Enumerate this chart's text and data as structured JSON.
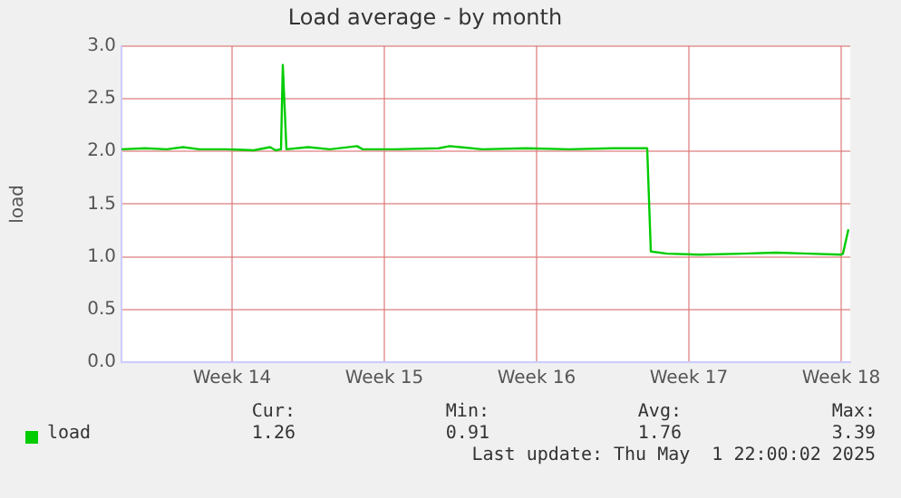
{
  "chart_data": {
    "type": "line",
    "title": "Load average - by month",
    "ylabel": "load",
    "x": [
      "2025-03-29T10:00",
      "2025-03-30T12:00",
      "2025-03-31T12:00",
      "2025-04-01T06:00",
      "2025-04-02T00:00",
      "2025-04-03T06:00",
      "2025-04-04T12:00",
      "2025-04-05T06:00",
      "2025-04-05T12:00",
      "2025-04-05T18:00",
      "2025-04-05T20:00",
      "2025-04-06T00:00",
      "2025-04-07T00:00",
      "2025-04-08T00:00",
      "2025-04-09T06:00",
      "2025-04-09T12:00",
      "2025-04-11T00:00",
      "2025-04-13T00:00",
      "2025-04-13T12:00",
      "2025-04-15T00:00",
      "2025-04-17T00:00",
      "2025-04-19T00:00",
      "2025-04-21T00:00",
      "2025-04-22T14:00",
      "2025-04-22T18:00",
      "2025-04-23T12:00",
      "2025-04-25T00:00",
      "2025-04-27T00:00",
      "2025-04-28T12:00",
      "2025-04-30T00:00",
      "2025-05-01T12:00",
      "2025-05-01T14:00",
      "2025-05-01T20:00"
    ],
    "series": [
      {
        "name": "load",
        "color": "#00cc00",
        "values": [
          2.02,
          2.03,
          2.02,
          2.04,
          2.02,
          2.02,
          2.01,
          2.04,
          2.01,
          2.02,
          2.82,
          2.02,
          2.04,
          2.02,
          2.05,
          2.02,
          2.02,
          2.03,
          2.05,
          2.02,
          2.03,
          2.02,
          2.03,
          2.03,
          1.05,
          1.03,
          1.02,
          1.03,
          1.04,
          1.03,
          1.02,
          1.03,
          1.26
        ]
      }
    ],
    "xlim": [
      "2025-03-29T10:00",
      "2025-05-01T22:00"
    ],
    "xticks": [
      {
        "value": "2025-04-03T12:00",
        "label": "Week 14"
      },
      {
        "value": "2025-04-10T12:00",
        "label": "Week 15"
      },
      {
        "value": "2025-04-17T12:00",
        "label": "Week 16"
      },
      {
        "value": "2025-04-24T12:00",
        "label": "Week 17"
      },
      {
        "value": "2025-05-01T12:00",
        "label": "Week 18"
      }
    ],
    "ylim": [
      0,
      3
    ],
    "yticks": [
      {
        "value": 0,
        "label": "0.0"
      },
      {
        "value": 0.5,
        "label": "0.5"
      },
      {
        "value": 1,
        "label": "1.0"
      },
      {
        "value": 1.5,
        "label": "1.5"
      },
      {
        "value": 2,
        "label": "2.0"
      },
      {
        "value": 2.5,
        "label": "2.5"
      },
      {
        "value": 3,
        "label": "3.0"
      }
    ],
    "grid": true,
    "legend": "bottom",
    "marker": "none",
    "line_style": "solid",
    "annotations": [
      "Cur:",
      "Min:",
      "Avg:",
      "Max:",
      "1.26",
      "0.91",
      "1.76",
      "3.39",
      "Last update: Thu May  1 22:00:02 2025"
    ]
  }
}
